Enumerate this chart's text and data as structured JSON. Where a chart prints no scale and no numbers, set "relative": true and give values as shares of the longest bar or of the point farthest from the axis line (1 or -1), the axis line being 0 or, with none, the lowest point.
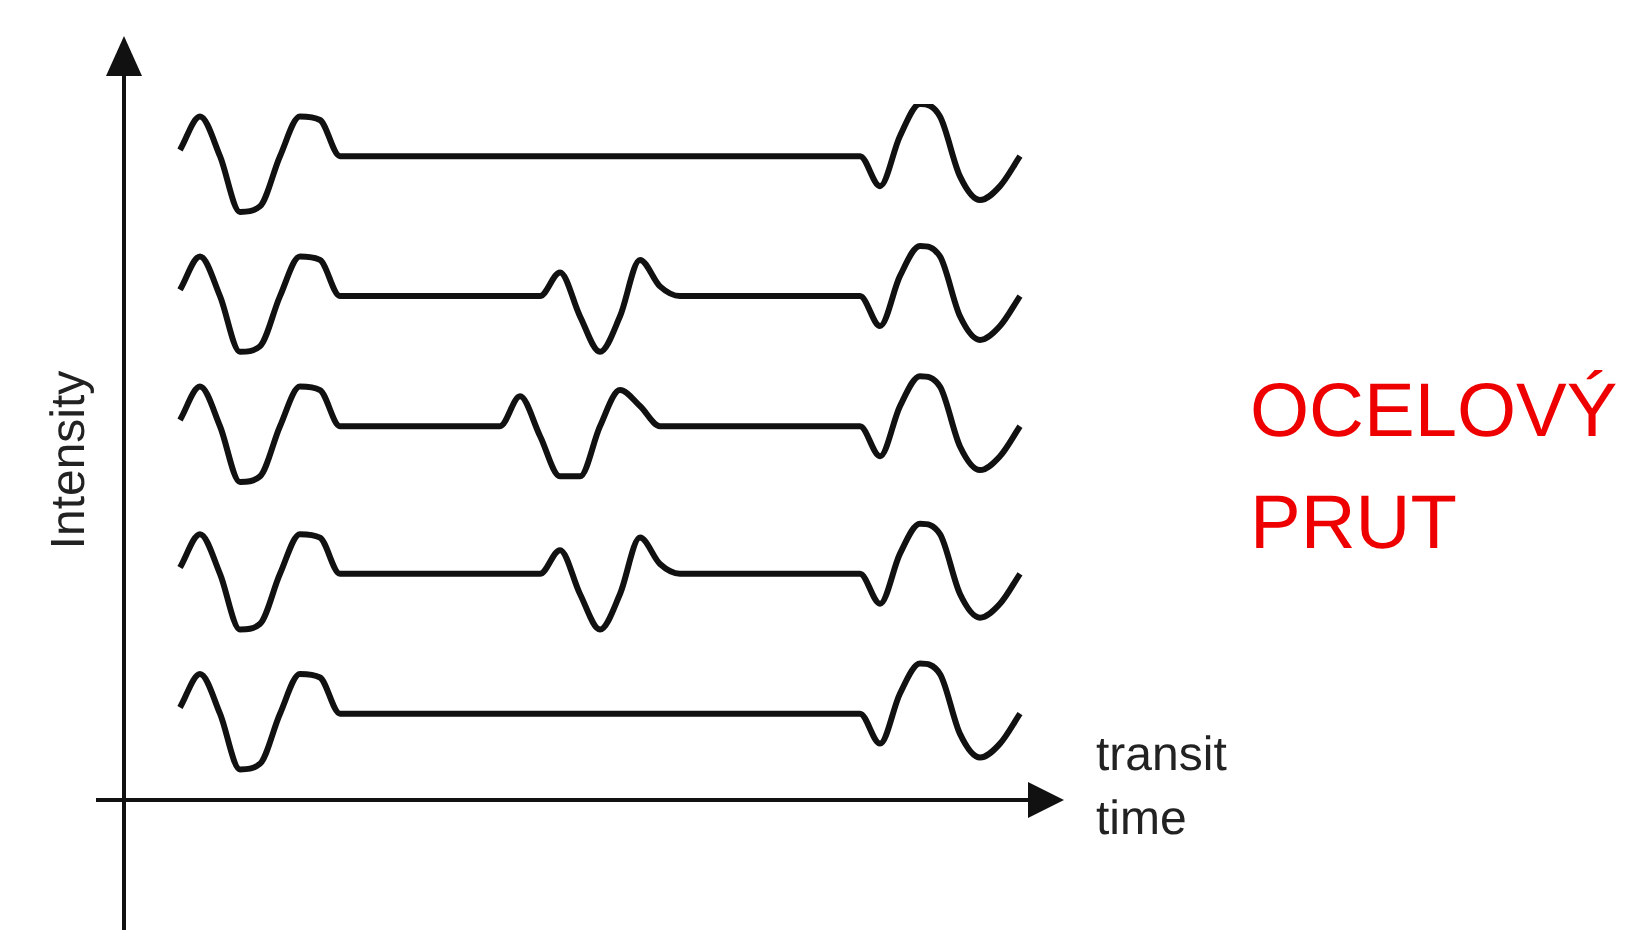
{
  "chart_data": {
    "type": "line",
    "relative": true,
    "xlabel": "transit time",
    "ylabel": "Intensity",
    "annotations": [
      "OCELOVÝ PRUT"
    ],
    "legend": false,
    "marker": "none",
    "categories": [
      null,
      null,
      null,
      null,
      null,
      null,
      null,
      null,
      null,
      null,
      null,
      null,
      null,
      null,
      null,
      null,
      null,
      null,
      null,
      null,
      null,
      null,
      null,
      null,
      null,
      null,
      null,
      null,
      null,
      null,
      null,
      null,
      null,
      null,
      null,
      null,
      null,
      null,
      null,
      null,
      null,
      null,
      null
    ],
    "series": [
      {
        "color": "#111111",
        "values": [
          0.934,
          0.982,
          0.925,
          0.845,
          0.853,
          0.925,
          0.982,
          0.977,
          0.925,
          0.925,
          0.925,
          0.925,
          0.925,
          0.925,
          0.925,
          0.925,
          0.925,
          0.925,
          0.925,
          0.925,
          0.925,
          0.925,
          0.925,
          0.925,
          0.925,
          0.925,
          0.925,
          0.925,
          0.925,
          0.925,
          0.925,
          0.925,
          0.925,
          0.925,
          0.925,
          0.882,
          0.954,
          1.0,
          0.982,
          0.896,
          0.862,
          0.882,
          0.925
        ]
      },
      {
        "color": "#111111",
        "values": [
          0.733,
          0.781,
          0.724,
          0.644,
          0.652,
          0.724,
          0.781,
          0.776,
          0.724,
          0.724,
          0.724,
          0.724,
          0.724,
          0.724,
          0.724,
          0.724,
          0.724,
          0.724,
          0.724,
          0.758,
          0.695,
          0.644,
          0.695,
          0.776,
          0.738,
          0.724,
          0.724,
          0.724,
          0.724,
          0.724,
          0.724,
          0.724,
          0.724,
          0.724,
          0.724,
          0.681,
          0.753,
          0.796,
          0.781,
          0.695,
          0.661,
          0.681,
          0.724
        ]
      },
      {
        "color": "#111111",
        "values": [
          0.546,
          0.594,
          0.537,
          0.457,
          0.465,
          0.537,
          0.594,
          0.589,
          0.537,
          0.537,
          0.537,
          0.537,
          0.537,
          0.537,
          0.537,
          0.537,
          0.537,
          0.58,
          0.523,
          0.465,
          0.465,
          0.537,
          0.589,
          0.566,
          0.537,
          0.537,
          0.537,
          0.537,
          0.537,
          0.537,
          0.537,
          0.537,
          0.537,
          0.537,
          0.537,
          0.494,
          0.566,
          0.609,
          0.594,
          0.508,
          0.474,
          0.494,
          0.537
        ]
      },
      {
        "color": "#111111",
        "values": [
          0.334,
          0.382,
          0.325,
          0.245,
          0.253,
          0.325,
          0.382,
          0.377,
          0.325,
          0.325,
          0.325,
          0.325,
          0.325,
          0.325,
          0.325,
          0.325,
          0.325,
          0.325,
          0.325,
          0.359,
          0.296,
          0.245,
          0.296,
          0.377,
          0.339,
          0.325,
          0.325,
          0.325,
          0.325,
          0.325,
          0.325,
          0.325,
          0.325,
          0.325,
          0.325,
          0.282,
          0.354,
          0.397,
          0.382,
          0.296,
          0.262,
          0.282,
          0.325
        ]
      },
      {
        "color": "#111111",
        "values": [
          0.133,
          0.181,
          0.124,
          0.044,
          0.052,
          0.124,
          0.181,
          0.176,
          0.124,
          0.124,
          0.124,
          0.124,
          0.124,
          0.124,
          0.124,
          0.124,
          0.124,
          0.124,
          0.124,
          0.124,
          0.124,
          0.124,
          0.124,
          0.124,
          0.124,
          0.124,
          0.124,
          0.124,
          0.124,
          0.124,
          0.124,
          0.124,
          0.124,
          0.124,
          0.124,
          0.081,
          0.153,
          0.196,
          0.181,
          0.095,
          0.061,
          0.081,
          0.124
        ]
      }
    ]
  }
}
